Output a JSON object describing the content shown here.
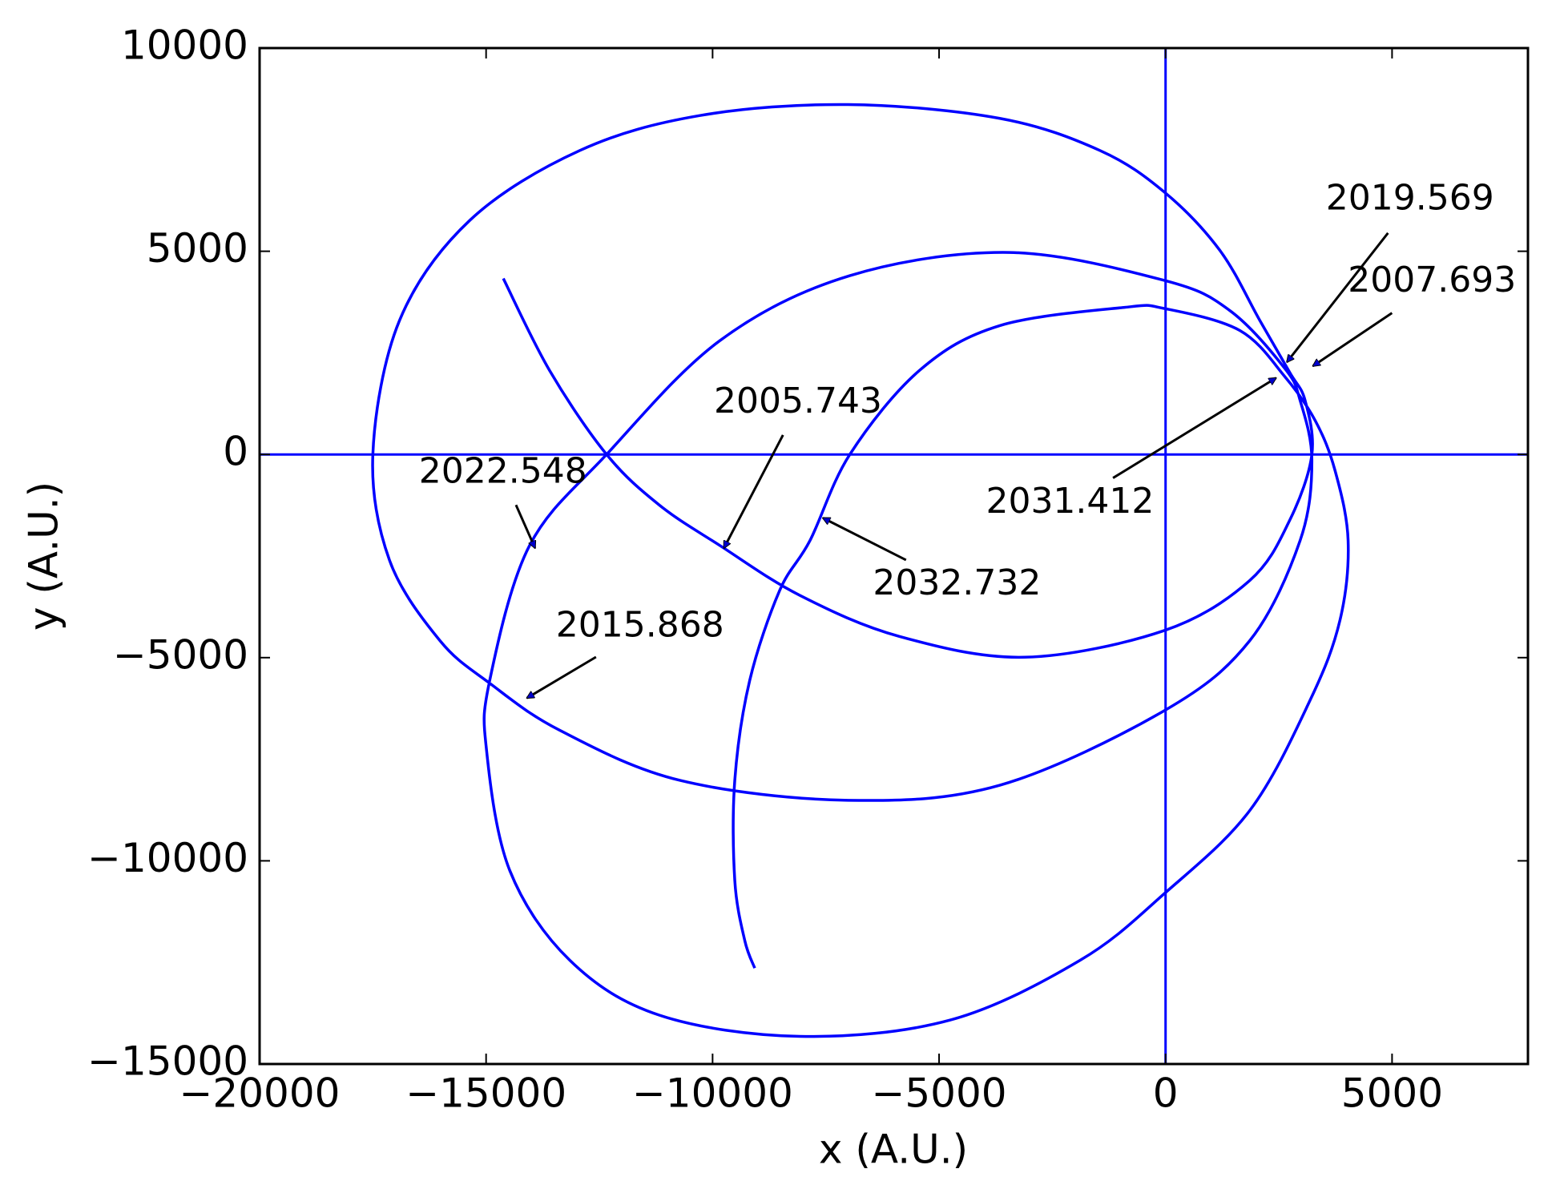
{
  "chart_data": {
    "type": "line",
    "xlabel": "x (A.U.)",
    "ylabel": "y (A.U.)",
    "xlim": [
      -20000,
      8000
    ],
    "ylim": [
      -15000,
      10000
    ],
    "xticks": [
      {
        "value": -20000,
        "label": "−20000"
      },
      {
        "value": -15000,
        "label": "−15000"
      },
      {
        "value": -10000,
        "label": "−10000"
      },
      {
        "value": -5000,
        "label": "−5000"
      },
      0,
      5000
    ],
    "yticks": [
      {
        "value": -15000,
        "label": "−15000"
      },
      {
        "value": -10000,
        "label": "−10000"
      },
      {
        "value": -5000,
        "label": "−5000"
      },
      0,
      5000,
      10000
    ],
    "hlines": [
      0
    ],
    "vlines": [
      0
    ],
    "color": "#0000ff",
    "x": [
      -14620,
      -13600,
      -12340,
      -11170,
      -9840,
      -8070,
      -5870,
      -3110,
      -20,
      1860,
      2740,
      3230,
      3080,
      2740,
      2080,
      1200,
      -20,
      -1450,
      -3660,
      -7010,
      -10280,
      -12930,
      -15360,
      -16910,
      -17500,
      -17130,
      -16020,
      -14920,
      -13370,
      -10720,
      -7010,
      -3660,
      -20,
      1860,
      2970,
      3230,
      2970,
      2630,
      1420,
      -20,
      -3440,
      -6970,
      -9840,
      -12340,
      -14040,
      -14920,
      -14990,
      -14480,
      -13150,
      -11170,
      -8070,
      -4760,
      -1890,
      -20,
      1860,
      3190,
      3850,
      4030,
      3740,
      3300,
      2630,
      1640,
      -20,
      -900,
      -3660,
      -5430,
      -6970,
      -7850,
      -8520,
      -9180,
      -9510,
      -9510,
      -9290,
      -9070
    ],
    "series": [
      {
        "values": [
          4330,
          2070,
          0,
          -1250,
          -2240,
          -3470,
          -4480,
          -4990,
          -4330,
          -3100,
          -1620,
          0,
          1330,
          2020,
          3300,
          5020,
          6450,
          7480,
          8270,
          8610,
          8340,
          7480,
          5760,
          3300,
          0,
          -2610,
          -4580,
          -5630,
          -6790,
          -8020,
          -8510,
          -8140,
          -6300,
          -4580,
          -2120,
          -150,
          1330,
          2120,
          3540,
          4280,
          4970,
          4400,
          2800,
          0,
          -2240,
          -5560,
          -7280,
          -10230,
          -12450,
          -13800,
          -14320,
          -13920,
          -12450,
          -10800,
          -8760,
          -6050,
          -4080,
          -2120,
          -390,
          840,
          1920,
          3050,
          3590,
          3620,
          3170,
          2070,
          0,
          -2120,
          -3350,
          -5560,
          -8020,
          -10480,
          -11960,
          -12640
        ]
      }
    ],
    "annotations": [
      "2019.569",
      "2007.693",
      "2005.743",
      "2022.548",
      "2015.868",
      "2031.412",
      "2032.732"
    ]
  }
}
